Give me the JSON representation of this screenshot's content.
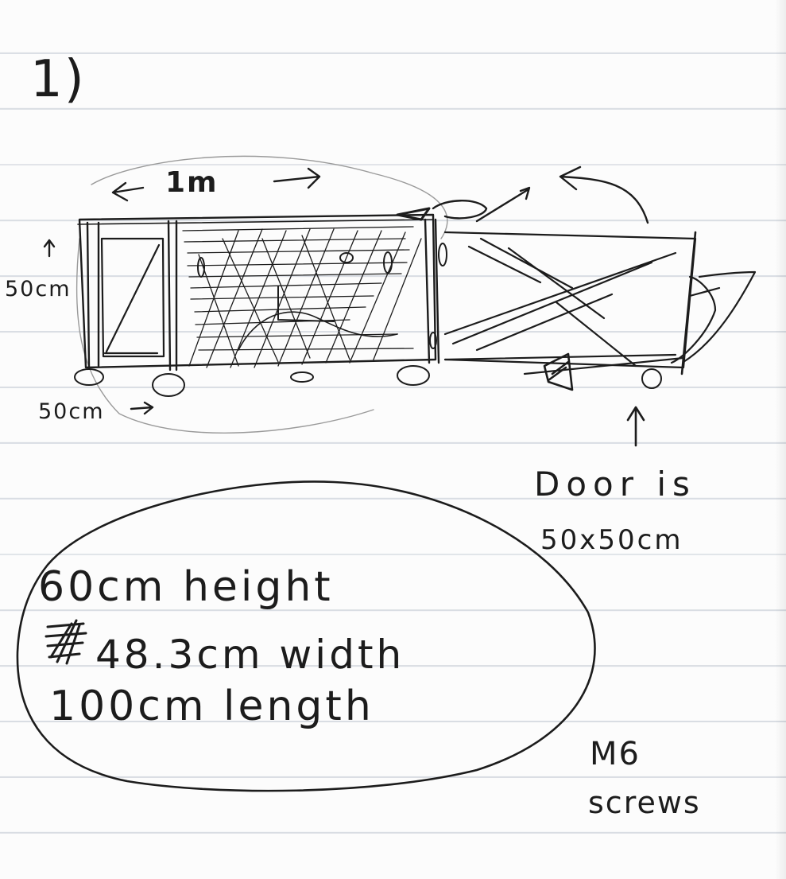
{
  "page": {
    "section_number": "1)",
    "dimension_top": "1m",
    "dimension_side": "50cm",
    "dimension_bottom": "50cm",
    "door_note_line1": "Door is",
    "door_note_line2": "50x50cm",
    "spec_line1": "60cm height",
    "spec_line2": "48.3cm width",
    "spec_line3": "100cm length",
    "screws_line1": "M6",
    "screws_line2": "screws"
  },
  "colors": {
    "paper": "#fcfcfc",
    "rule_line": "#d9dde3",
    "ink": "#1c1c1c"
  }
}
